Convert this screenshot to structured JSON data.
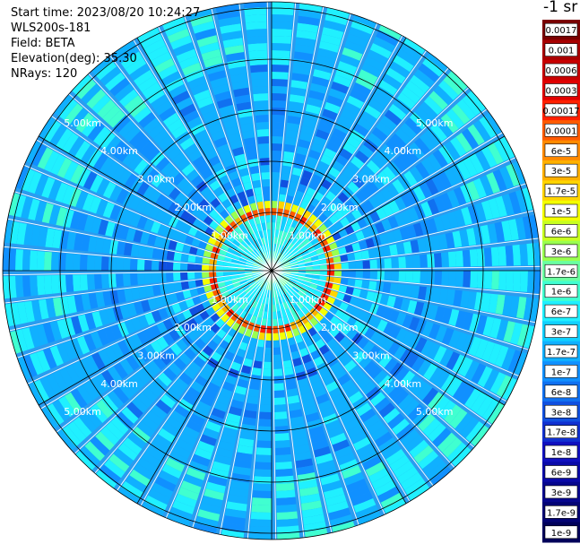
{
  "header": {
    "start_time": "Start time: 2023/08/20 10:24:27",
    "instrument": "WLS200s-181",
    "field": "Field: BETA",
    "elevation": "Elevation(deg): 35.30",
    "nrays": "NRays: 120"
  },
  "ring_labels": [
    "1.00km",
    "2.00km",
    "3.00km",
    "4.00km",
    "5.00km"
  ],
  "colorbar": {
    "unit": "-1 sr",
    "ticks": [
      "0.0017",
      "0.001",
      "0.0006",
      "0.0003",
      "0.00017",
      "0.0001",
      "6e-5",
      "3e-5",
      "1.7e-5",
      "1e-5",
      "6e-6",
      "3e-6",
      "1.7e-6",
      "1e-6",
      "6e-7",
      "3e-7",
      "1.7e-7",
      "1e-7",
      "6e-8",
      "3e-8",
      "1.7e-8",
      "1e-8",
      "6e-9",
      "3e-9",
      "1.7e-9",
      "1e-9"
    ],
    "colors": [
      "#7a0000",
      "#a80000",
      "#c80000",
      "#e00000",
      "#ff2000",
      "#ff5a00",
      "#ff8a00",
      "#ffb000",
      "#ffd400",
      "#f4ff00",
      "#c8ff20",
      "#9aff50",
      "#6affa0",
      "#40ffd0",
      "#20f0ff",
      "#10d0ff",
      "#10b0ff",
      "#1090ff",
      "#1070f0",
      "#1050e0",
      "#1030d0",
      "#1010c0",
      "#0a0aa8",
      "#06068e",
      "#030374",
      "#00005a"
    ]
  },
  "map": {
    "rays": 120,
    "max_range_km": 5.3,
    "background": "#2a9cf0"
  }
}
